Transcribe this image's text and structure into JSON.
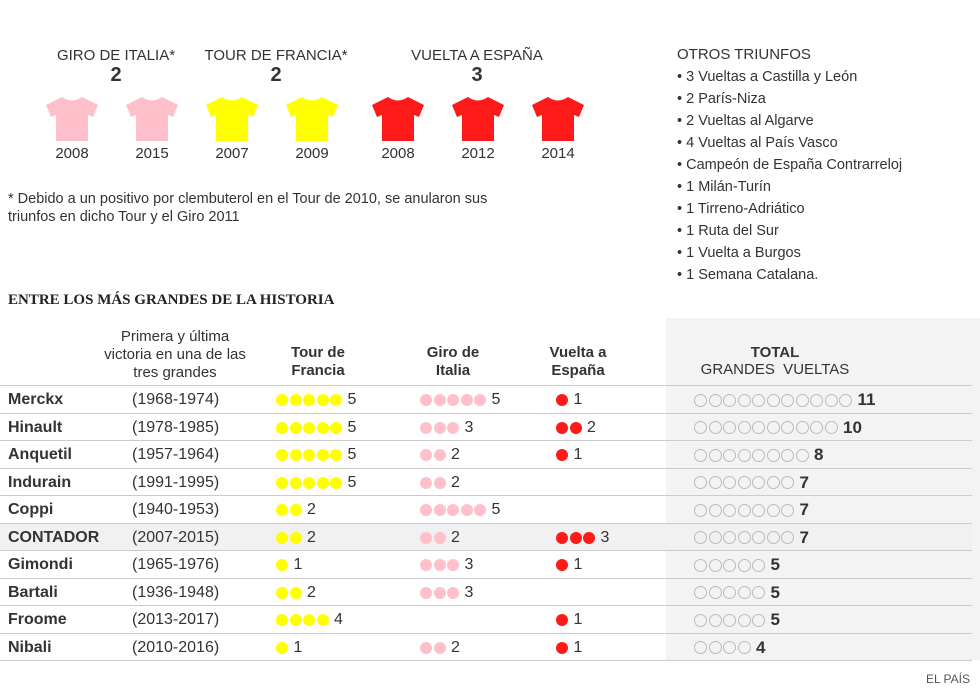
{
  "jerseys": [
    {
      "title": "GIRO DE ITALIA*",
      "count": "2",
      "color": "#ffc0cb",
      "years": [
        "2008",
        "2015"
      ]
    },
    {
      "title": "TOUR DE FRANCIA*",
      "count": "2",
      "color": "#ffff00",
      "years": [
        "2007",
        "2009"
      ]
    },
    {
      "title": "VUELTA A ESPAÑA",
      "count": "3",
      "color": "#ff1a1a",
      "years": [
        "2008",
        "2012",
        "2014"
      ]
    }
  ],
  "note": "* Debido a un positivo por clembuterol en el Tour de 2010, se anularon sus triunfos en dicho Tour y el Giro 2011",
  "others": {
    "title": "OTROS TRIUNFOS",
    "items": [
      "• 3 Vueltas a Castilla y León",
      "• 2 París-Niza",
      "• 2 Vueltas al Algarve",
      "• 4 Vueltas al País Vasco",
      "• Campeón de España Contrarreloj",
      "• 1 Milán-Turín",
      "• 1 Tirreno-Adriático",
      "• 1 Ruta del Sur",
      "• 1 Vuelta a Burgos",
      "• 1 Semana Catalana."
    ]
  },
  "section_title": "ENTRE LOS MÁS GRANDES DE LA HISTORIA",
  "credit": "EL PAÍS",
  "chart_data": {
    "type": "table",
    "headers": {
      "years": "Primera y última victoria en una de las tres grandes",
      "tour": "Tour de Francia",
      "giro": "Giro de Italia",
      "vuelta": "Vuelta a España",
      "total_1": "TOTAL",
      "total_2": "GRANDES  VUELTAS"
    },
    "colors": {
      "tour": "#ffff00",
      "giro": "#ffc0cb",
      "vuelta": "#ff1a1a"
    },
    "rows": [
      {
        "name": "Merckx",
        "years": "(1968-1974)",
        "tour": 5,
        "giro": 5,
        "vuelta": 1,
        "total": 11
      },
      {
        "name": "Hinault",
        "years": "(1978-1985)",
        "tour": 5,
        "giro": 3,
        "vuelta": 2,
        "total": 10
      },
      {
        "name": "Anquetil",
        "years": "(1957-1964)",
        "tour": 5,
        "giro": 2,
        "vuelta": 1,
        "total": 8
      },
      {
        "name": "Indurain",
        "years": "(1991-1995)",
        "tour": 5,
        "giro": 2,
        "vuelta": 0,
        "total": 7
      },
      {
        "name": "Coppi",
        "years": "(1940-1953)",
        "tour": 2,
        "giro": 5,
        "vuelta": 0,
        "total": 7
      },
      {
        "name": "CONTADOR",
        "years": "(2007-2015)",
        "tour": 2,
        "giro": 2,
        "vuelta": 3,
        "total": 7,
        "highlight": true
      },
      {
        "name": "Gimondi",
        "years": "(1965-1976)",
        "tour": 1,
        "giro": 3,
        "vuelta": 1,
        "total": 5
      },
      {
        "name": "Bartali",
        "years": "(1936-1948)",
        "tour": 2,
        "giro": 3,
        "vuelta": 0,
        "total": 5
      },
      {
        "name": "Froome",
        "years": "(2013-2017)",
        "tour": 4,
        "giro": 0,
        "vuelta": 1,
        "total": 5
      },
      {
        "name": "Nibali",
        "years": "(2010-2016)",
        "tour": 1,
        "giro": 2,
        "vuelta": 1,
        "total": 4
      }
    ]
  }
}
